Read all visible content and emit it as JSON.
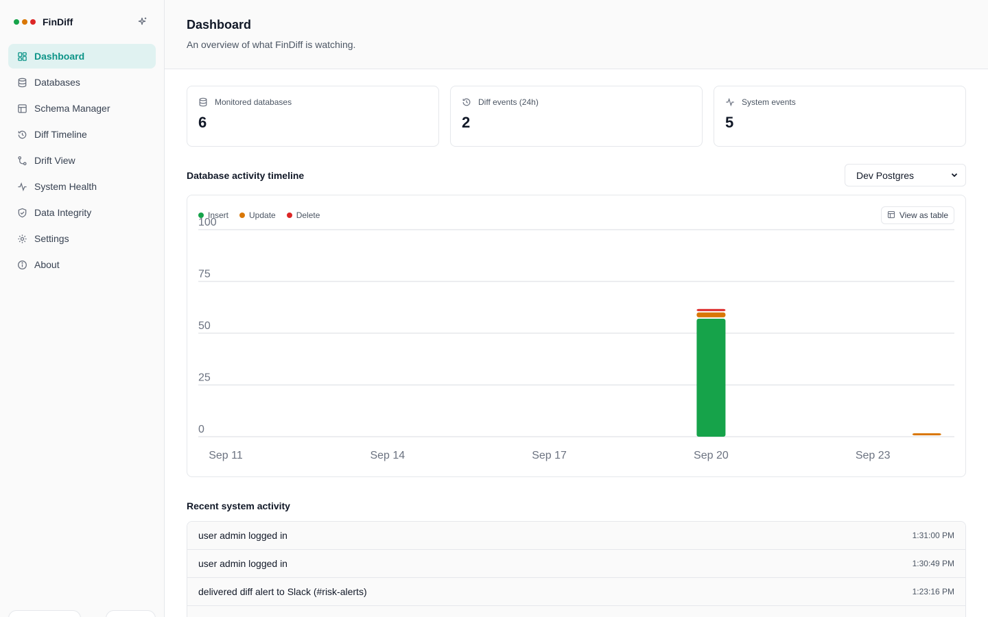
{
  "brand": {
    "name": "FinDiff",
    "dots": [
      "#16a34a",
      "#d97706",
      "#dc2626"
    ]
  },
  "sidebar": {
    "items": [
      {
        "label": "Dashboard",
        "icon": "dashboard-icon",
        "active": true
      },
      {
        "label": "Databases",
        "icon": "database-icon"
      },
      {
        "label": "Schema Manager",
        "icon": "table-icon"
      },
      {
        "label": "Diff Timeline",
        "icon": "history-icon"
      },
      {
        "label": "Drift View",
        "icon": "git-compare-icon"
      },
      {
        "label": "System Health",
        "icon": "activity-icon"
      },
      {
        "label": "Data Integrity",
        "icon": "shield-icon"
      },
      {
        "label": "Settings",
        "icon": "gear-icon"
      },
      {
        "label": "About",
        "icon": "info-icon"
      }
    ]
  },
  "header": {
    "title": "Dashboard",
    "subtitle": "An overview of what FinDiff is watching."
  },
  "stats": [
    {
      "label": "Monitored databases",
      "value": "6",
      "icon": "database-icon"
    },
    {
      "label": "Diff events (24h)",
      "value": "2",
      "icon": "history-icon"
    },
    {
      "label": "System events",
      "value": "5",
      "icon": "activity-icon"
    }
  ],
  "timeline": {
    "title": "Database activity timeline",
    "selected_db": "Dev Postgres",
    "view_table_label": "View as table"
  },
  "chart_data": {
    "type": "bar",
    "stacked": true,
    "legend_position": "top-left",
    "grid": true,
    "ylim": [
      0,
      100
    ],
    "y_ticks": [
      0,
      25,
      50,
      75,
      100
    ],
    "x_tick_labels": [
      "Sep 11",
      "Sep 14",
      "Sep 17",
      "Sep 20",
      "Sep 23"
    ],
    "categories": [
      "Sep 11",
      "Sep 12",
      "Sep 13",
      "Sep 14",
      "Sep 15",
      "Sep 16",
      "Sep 17",
      "Sep 18",
      "Sep 19",
      "Sep 20",
      "Sep 21",
      "Sep 22",
      "Sep 23",
      "Sep 24"
    ],
    "series": [
      {
        "name": "Insert",
        "color": "#16a34a",
        "values": [
          0,
          0,
          0,
          0,
          0,
          0,
          0,
          0,
          0,
          57,
          0,
          0,
          0,
          0
        ]
      },
      {
        "name": "Update",
        "color": "#d97706",
        "values": [
          0,
          0,
          0,
          0,
          0,
          0,
          0,
          0,
          0,
          3,
          0,
          0,
          0,
          1
        ]
      },
      {
        "name": "Delete",
        "color": "#dc2626",
        "values": [
          0,
          0,
          0,
          0,
          0,
          0,
          0,
          0,
          0,
          1,
          0,
          0,
          0,
          0
        ]
      }
    ]
  },
  "activity": {
    "title": "Recent system activity",
    "rows": [
      {
        "message": "user admin logged in",
        "time": "1:31:00 PM"
      },
      {
        "message": "user admin logged in",
        "time": "1:30:49 PM"
      },
      {
        "message": "delivered diff alert to Slack (#risk-alerts)",
        "time": "1:23:16 PM"
      }
    ]
  }
}
